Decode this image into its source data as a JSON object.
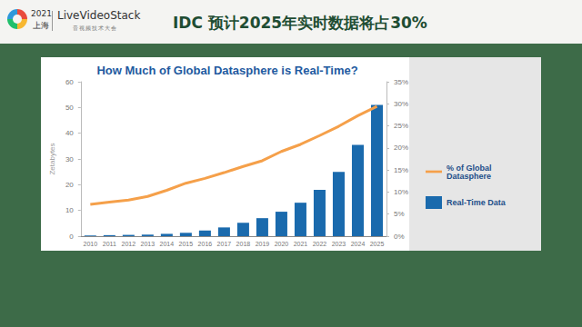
{
  "page": {
    "logo_year": "2021",
    "logo_city": "上海",
    "brand": "LiveVideoStack",
    "brand_sub": "音视频技术大会",
    "header": "IDC 预计2025年实时数据将占30%"
  },
  "chart_data": {
    "type": "bar",
    "title": "How Much of Global Datasphere is Real-Time?",
    "categories": [
      "2010",
      "2011",
      "2012",
      "2013",
      "2014",
      "2015",
      "2016",
      "2017",
      "2018",
      "2019",
      "2020",
      "2021",
      "2022",
      "2023",
      "2024",
      "2025"
    ],
    "y_label": "Zetabytes",
    "series": [
      {
        "name": "Real-Time Data",
        "type": "bar",
        "color": "#1a6aad",
        "values": [
          0.3,
          0.4,
          0.5,
          0.6,
          0.9,
          1.3,
          2.2,
          3.4,
          5.2,
          7.0,
          9.5,
          13,
          18,
          25,
          35.5,
          51
        ]
      },
      {
        "name": "% of Global Datasphere",
        "type": "line",
        "color": "#f5a04a",
        "axis": "y2",
        "marker": "none",
        "values": [
          7.2,
          7.7,
          8.2,
          9,
          10.4,
          12,
          13.1,
          14.4,
          15.8,
          17.1,
          19.2,
          20.8,
          22.8,
          24.9,
          27.3,
          29.4
        ]
      }
    ],
    "ylim": [
      0,
      60
    ],
    "yticks": [
      0,
      10,
      20,
      30,
      40,
      50,
      60
    ],
    "y2lim": [
      0,
      35
    ],
    "y2ticks": [
      {
        "value": 0,
        "label": "0%"
      },
      {
        "value": 5,
        "label": "5%"
      },
      {
        "value": 10,
        "label": "10%"
      },
      {
        "value": 15,
        "label": "15%"
      },
      {
        "value": 20,
        "label": "20%"
      },
      {
        "value": 25,
        "label": "25%"
      },
      {
        "value": 30,
        "label": "30%"
      },
      {
        "value": 35,
        "label": "35%"
      }
    ],
    "grid": false,
    "legend": "right"
  }
}
